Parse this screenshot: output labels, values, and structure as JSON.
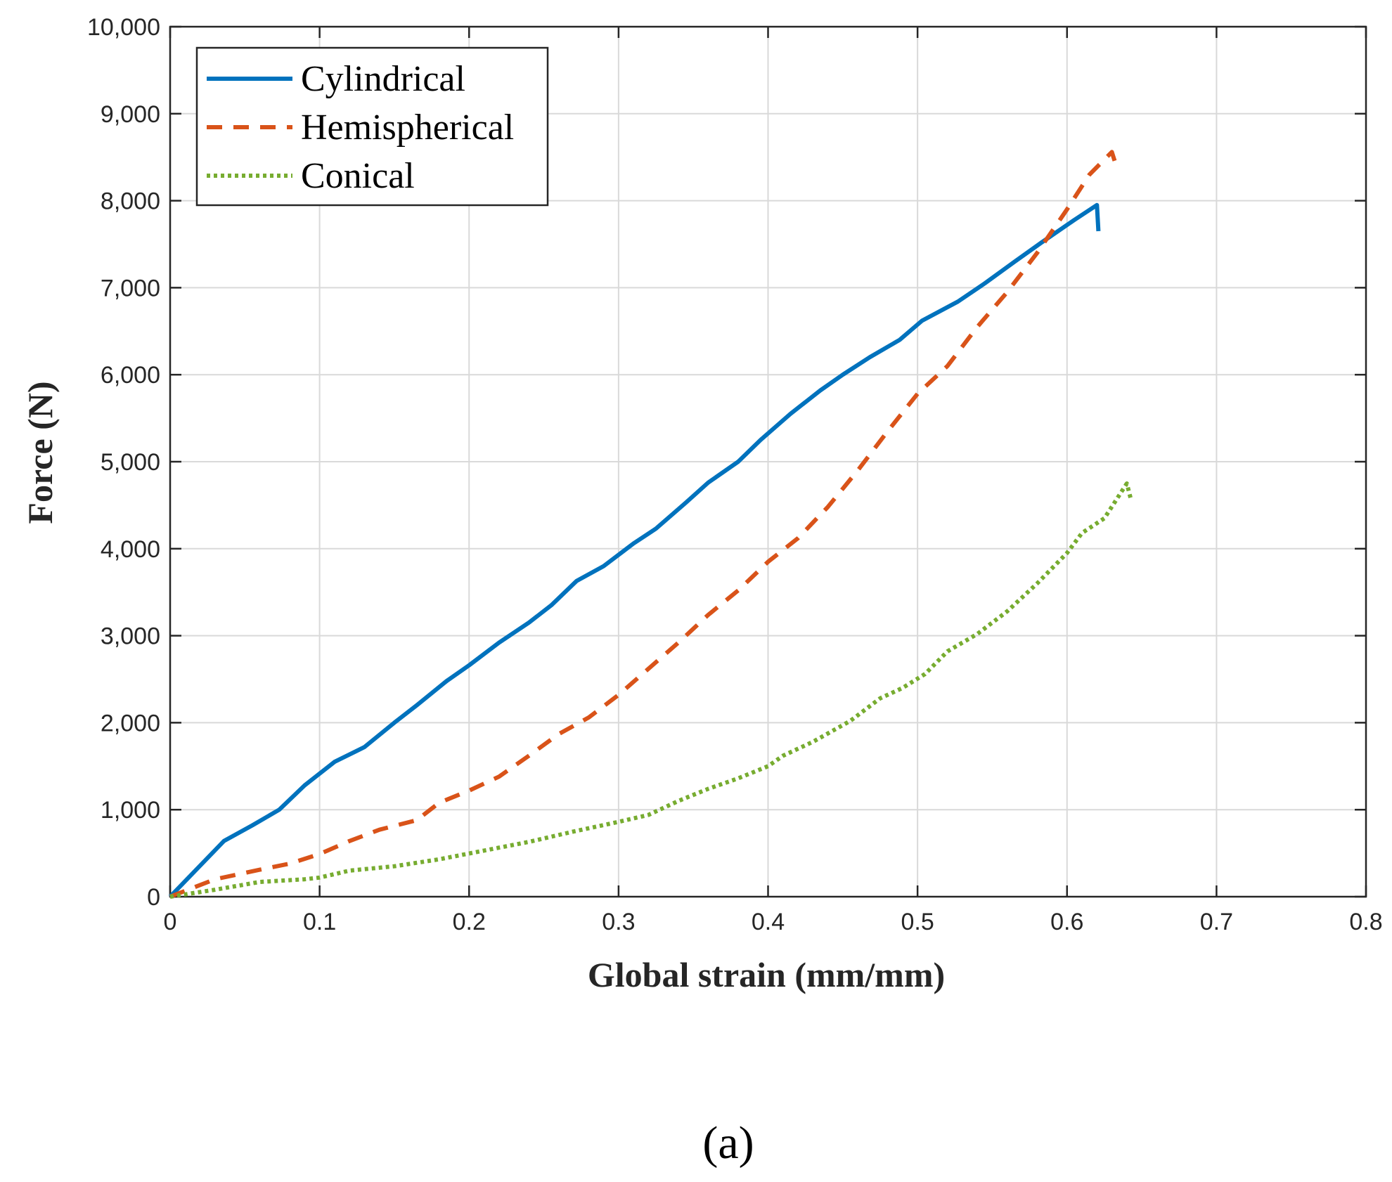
{
  "chart_data": {
    "type": "line",
    "title": "",
    "xlabel": "Global strain (mm/mm)",
    "ylabel": "Force (N)",
    "xlim": [
      0,
      0.8
    ],
    "ylim": [
      0,
      10000
    ],
    "grid": true,
    "legend_position": "top-left",
    "x_ticks": [
      0,
      0.1,
      0.2,
      0.3,
      0.4,
      0.5,
      0.6,
      0.7,
      0.8
    ],
    "x_tick_labels": [
      "0",
      "0.1",
      "0.2",
      "0.3",
      "0.4",
      "0.5",
      "0.6",
      "0.7",
      "0.8"
    ],
    "y_ticks": [
      0,
      1000,
      2000,
      3000,
      4000,
      5000,
      6000,
      7000,
      8000,
      9000,
      10000
    ],
    "y_tick_labels": [
      "0",
      "1,000",
      "2,000",
      "3,000",
      "4,000",
      "5,000",
      "6,000",
      "7,000",
      "8,000",
      "9,000",
      "10,000"
    ],
    "caption": "(a)",
    "series": [
      {
        "name": "Cylindrical",
        "color": "#0072BD",
        "style": "solid",
        "x": [
          0,
          0.036,
          0.055,
          0.073,
          0.09,
          0.11,
          0.13,
          0.15,
          0.165,
          0.185,
          0.2,
          0.22,
          0.24,
          0.255,
          0.272,
          0.29,
          0.31,
          0.325,
          0.345,
          0.36,
          0.38,
          0.395,
          0.415,
          0.435,
          0.45,
          0.468,
          0.488,
          0.503,
          0.527,
          0.545,
          0.565,
          0.583,
          0.605,
          0.62,
          0.621
        ],
        "y": [
          0,
          640,
          820,
          1000,
          1280,
          1550,
          1720,
          2000,
          2200,
          2480,
          2660,
          2920,
          3150,
          3350,
          3630,
          3800,
          4060,
          4230,
          4530,
          4760,
          5000,
          5250,
          5550,
          5820,
          6000,
          6200,
          6400,
          6620,
          6840,
          7050,
          7300,
          7520,
          7780,
          7950,
          7650
        ]
      },
      {
        "name": "Hemispherical",
        "color": "#D95319",
        "style": "dashed",
        "x": [
          0,
          0.03,
          0.06,
          0.08,
          0.1,
          0.12,
          0.14,
          0.165,
          0.18,
          0.2,
          0.22,
          0.24,
          0.26,
          0.28,
          0.3,
          0.32,
          0.34,
          0.36,
          0.38,
          0.4,
          0.42,
          0.44,
          0.46,
          0.48,
          0.5,
          0.52,
          0.54,
          0.56,
          0.58,
          0.6,
          0.615,
          0.63,
          0.632
        ],
        "y": [
          0,
          200,
          310,
          380,
          490,
          640,
          770,
          880,
          1080,
          1220,
          1380,
          1620,
          1870,
          2060,
          2320,
          2620,
          2920,
          3240,
          3520,
          3850,
          4120,
          4480,
          4900,
          5350,
          5780,
          6100,
          6550,
          6950,
          7400,
          7900,
          8300,
          8560,
          8450
        ]
      },
      {
        "name": "Conical",
        "color": "#77AC30",
        "style": "dotted",
        "x": [
          0,
          0.03,
          0.06,
          0.09,
          0.1,
          0.12,
          0.15,
          0.18,
          0.21,
          0.24,
          0.27,
          0.3,
          0.32,
          0.34,
          0.36,
          0.38,
          0.4,
          0.41,
          0.43,
          0.455,
          0.475,
          0.49,
          0.505,
          0.52,
          0.54,
          0.56,
          0.58,
          0.6,
          0.61,
          0.625,
          0.64,
          0.643
        ],
        "y": [
          0,
          80,
          170,
          200,
          220,
          300,
          350,
          430,
          530,
          630,
          750,
          860,
          940,
          1100,
          1240,
          1360,
          1500,
          1620,
          1780,
          2020,
          2280,
          2400,
          2560,
          2820,
          3020,
          3280,
          3600,
          3950,
          4180,
          4350,
          4750,
          4550
        ]
      }
    ]
  }
}
